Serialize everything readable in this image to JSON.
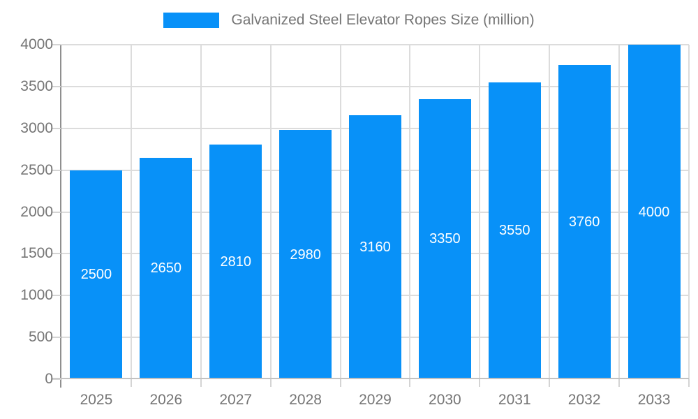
{
  "chart_data": {
    "type": "bar",
    "title": "Galvanized Steel Elevator Ropes Size (million)",
    "categories": [
      "2025",
      "2026",
      "2027",
      "2028",
      "2029",
      "2030",
      "2031",
      "2032",
      "2033"
    ],
    "values": [
      2500,
      2650,
      2810,
      2980,
      3160,
      3350,
      3550,
      3760,
      4000
    ],
    "xlabel": "",
    "ylabel": "",
    "ylim": [
      0,
      4000
    ],
    "yticks": [
      0,
      500,
      1000,
      1500,
      2000,
      2500,
      3000,
      3500,
      4000
    ],
    "grid": true,
    "legend_position": "top",
    "value_labels": "inside-center"
  },
  "colors": {
    "bar": "#0891F8",
    "value_label": "#ffffff",
    "grid": "#dcdcdc",
    "y_axis": "#8f8f8f",
    "x_axis": "#c2c2c2",
    "tick": "#d4d4d4",
    "tick_label": "#757575",
    "legend_text": "#757575",
    "background": "#ffffff"
  }
}
